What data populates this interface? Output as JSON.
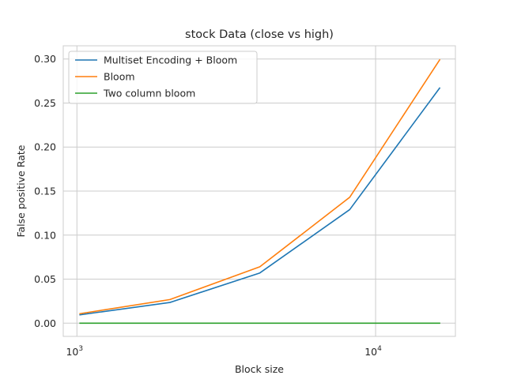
{
  "chart_data": {
    "type": "line",
    "title": "stock Data (close vs high)",
    "xlabel": "Block size",
    "ylabel": "False positive Rate",
    "xscale": "log",
    "xlim": [
      900,
      18500
    ],
    "ylim": [
      -0.015,
      0.315
    ],
    "x": [
      1024,
      2048,
      4096,
      8192,
      16384
    ],
    "x_ticks": [
      {
        "value": 1000,
        "base": "10",
        "exp": "3"
      },
      {
        "value": 10000,
        "base": "10",
        "exp": "4"
      }
    ],
    "y_ticks": [
      0.0,
      0.05,
      0.1,
      0.15,
      0.2,
      0.25,
      0.3
    ],
    "y_tick_labels": [
      "0.00",
      "0.05",
      "0.10",
      "0.15",
      "0.20",
      "0.25",
      "0.30"
    ],
    "grid": true,
    "legend_position": "top-left",
    "series": [
      {
        "name": "Multiset Encoding + Bloom",
        "color": "#1f77b4",
        "values": [
          0.0095,
          0.0235,
          0.057,
          0.129,
          0.267
        ]
      },
      {
        "name": "Bloom",
        "color": "#ff7f0e",
        "values": [
          0.0108,
          0.0268,
          0.064,
          0.143,
          0.299
        ]
      },
      {
        "name": "Two column bloom",
        "color": "#2ca02c",
        "values": [
          0.0,
          0.0,
          0.0,
          0.0,
          0.0
        ]
      }
    ]
  }
}
